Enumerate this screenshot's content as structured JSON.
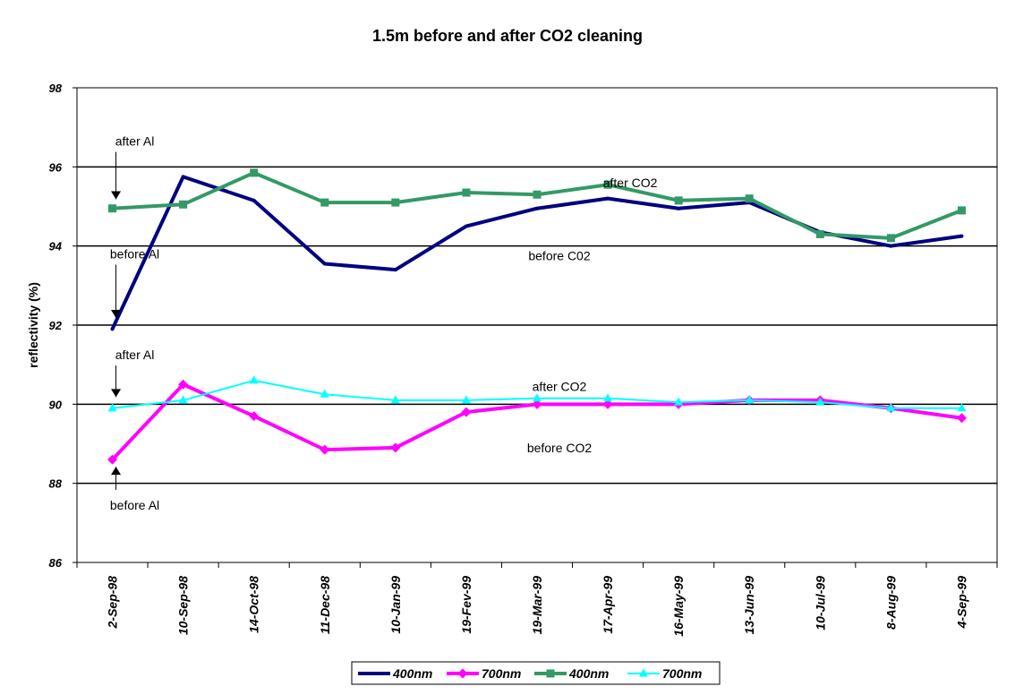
{
  "chart_data": {
    "type": "line",
    "title": "1.5m before and after CO2 cleaning",
    "xlabel": "",
    "ylabel": "reflectivity (%)",
    "ylim": [
      86,
      98
    ],
    "yticks": [
      "86",
      "88",
      "90",
      "92",
      "94",
      "96",
      "98"
    ],
    "grid": "horizontal major gridlines",
    "legend_position": "bottom",
    "categories": [
      "2-Sep-98",
      "10-Sep-98",
      "14-Oct-98",
      "11-Dec-98",
      "10-Jan-99",
      "19-Fev-99",
      "19-Mar-99",
      "17-Apr-99",
      "16-May-99",
      "13-Jun-99",
      "10-Jul-99",
      "8-Aug-99",
      "4-Sep-99"
    ],
    "series": [
      {
        "name": "400nm",
        "color": "#000080",
        "marker": "none",
        "width": 4,
        "values": [
          91.9,
          95.75,
          95.15,
          93.55,
          93.4,
          94.5,
          94.95,
          95.2,
          94.95,
          95.1,
          94.35,
          94.0,
          94.25
        ]
      },
      {
        "name": "700nm",
        "color": "#ff00ff",
        "marker": "diamond",
        "width": 4,
        "values": [
          88.6,
          90.5,
          89.7,
          88.85,
          88.9,
          89.8,
          90.0,
          90.0,
          90.0,
          90.1,
          90.1,
          89.9,
          89.65
        ]
      },
      {
        "name": "400nm",
        "color": "#339966",
        "marker": "square",
        "width": 4,
        "values": [
          94.95,
          95.05,
          95.85,
          95.1,
          95.1,
          95.35,
          95.3,
          95.55,
          95.15,
          95.2,
          94.3,
          94.2,
          94.9
        ]
      },
      {
        "name": "700nm",
        "color": "#00ffff",
        "marker": "triangle",
        "width": 2,
        "values": [
          89.9,
          90.1,
          90.6,
          90.25,
          90.1,
          90.1,
          90.15,
          90.15,
          90.05,
          90.1,
          90.05,
          89.9,
          89.9
        ]
      }
    ],
    "annotations": [
      {
        "text": "after Al",
        "x": "2-Sep-98",
        "y": 96.65,
        "arrow_to": 95.0
      },
      {
        "text": "before Al",
        "x": "2-Sep-98",
        "y": 93.8,
        "arrow_to": 92.0
      },
      {
        "text": "after Al",
        "x": "2-Sep-98",
        "y": 91.25,
        "arrow_to": 90.0
      },
      {
        "text": "before Al",
        "x": "2-Sep-98",
        "y": 87.45,
        "arrow_to": 88.6
      },
      {
        "text": "after CO2",
        "x": "17-Apr-99",
        "y": 95.6
      },
      {
        "text": "before C02",
        "x": "19-Mar-99",
        "y": 93.75
      },
      {
        "text": "after CO2",
        "x": "19-Mar-99",
        "y": 90.45
      },
      {
        "text": "before CO2",
        "x": "19-Mar-99",
        "y": 88.9
      }
    ]
  }
}
